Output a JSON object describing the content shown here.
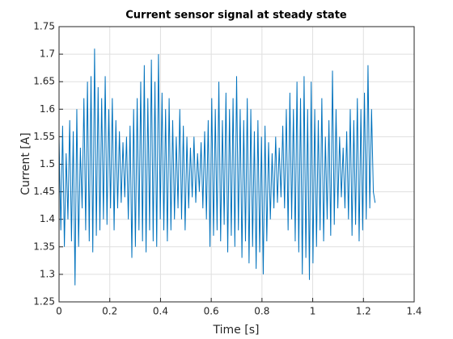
{
  "chart_data": {
    "type": "line",
    "title": "Current sensor signal at steady state",
    "xlabel": "Time [s]",
    "ylabel": "Current [A]",
    "xlim": [
      0,
      1.4
    ],
    "xticks": [
      0,
      0.2,
      0.4,
      0.6,
      0.8,
      1,
      1.2,
      1.4
    ],
    "ylim": [
      1.25,
      1.75
    ],
    "yticks": [
      1.25,
      1.3,
      1.35,
      1.4,
      1.45,
      1.5,
      1.55,
      1.6,
      1.65,
      1.7,
      1.75
    ],
    "grid": true,
    "color": "#0072bd",
    "x": [
      0,
      0.007,
      0.014,
      0.021,
      0.028,
      0.035,
      0.042,
      0.049,
      0.056,
      0.063,
      0.07,
      0.077,
      0.084,
      0.091,
      0.098,
      0.105,
      0.112,
      0.119,
      0.126,
      0.133,
      0.14,
      0.147,
      0.154,
      0.161,
      0.168,
      0.175,
      0.182,
      0.189,
      0.196,
      0.203,
      0.21,
      0.217,
      0.224,
      0.231,
      0.238,
      0.245,
      0.252,
      0.259,
      0.266,
      0.273,
      0.28,
      0.287,
      0.294,
      0.301,
      0.308,
      0.315,
      0.322,
      0.329,
      0.336,
      0.343,
      0.35,
      0.357,
      0.364,
      0.371,
      0.378,
      0.385,
      0.392,
      0.399,
      0.406,
      0.413,
      0.42,
      0.427,
      0.434,
      0.441,
      0.448,
      0.455,
      0.462,
      0.469,
      0.476,
      0.483,
      0.49,
      0.497,
      0.504,
      0.511,
      0.518,
      0.525,
      0.532,
      0.539,
      0.546,
      0.553,
      0.56,
      0.567,
      0.574,
      0.581,
      0.588,
      0.595,
      0.602,
      0.609,
      0.616,
      0.623,
      0.63,
      0.637,
      0.644,
      0.651,
      0.658,
      0.665,
      0.672,
      0.679,
      0.686,
      0.693,
      0.7,
      0.707,
      0.714,
      0.721,
      0.728,
      0.735,
      0.742,
      0.749,
      0.756,
      0.763,
      0.77,
      0.777,
      0.784,
      0.791,
      0.798,
      0.805,
      0.812,
      0.819,
      0.826,
      0.833,
      0.84,
      0.847,
      0.854,
      0.861,
      0.868,
      0.875,
      0.882,
      0.889,
      0.896,
      0.903,
      0.91,
      0.917,
      0.924,
      0.931,
      0.938,
      0.945,
      0.952,
      0.959,
      0.966,
      0.973,
      0.98,
      0.987,
      0.994,
      1.001,
      1.008,
      1.015,
      1.022,
      1.029,
      1.036,
      1.043,
      1.05,
      1.057,
      1.064,
      1.071,
      1.078,
      1.085,
      1.092,
      1.099,
      1.106,
      1.113,
      1.12,
      1.127,
      1.134,
      1.141,
      1.148,
      1.155,
      1.162,
      1.169,
      1.176,
      1.183,
      1.19,
      1.197,
      1.204,
      1.211,
      1.218,
      1.225,
      1.232,
      1.239,
      1.246
    ],
    "values": [
      1.55,
      1.38,
      1.57,
      1.35,
      1.52,
      1.4,
      1.58,
      1.36,
      1.56,
      1.28,
      1.6,
      1.35,
      1.53,
      1.42,
      1.62,
      1.38,
      1.65,
      1.36,
      1.66,
      1.34,
      1.71,
      1.37,
      1.64,
      1.38,
      1.62,
      1.4,
      1.66,
      1.39,
      1.6,
      1.42,
      1.62,
      1.38,
      1.58,
      1.42,
      1.56,
      1.43,
      1.54,
      1.44,
      1.55,
      1.4,
      1.57,
      1.33,
      1.6,
      1.35,
      1.62,
      1.38,
      1.65,
      1.36,
      1.68,
      1.34,
      1.62,
      1.38,
      1.69,
      1.36,
      1.65,
      1.35,
      1.7,
      1.4,
      1.63,
      1.38,
      1.6,
      1.36,
      1.62,
      1.38,
      1.58,
      1.4,
      1.55,
      1.42,
      1.6,
      1.4,
      1.57,
      1.38,
      1.55,
      1.42,
      1.53,
      1.44,
      1.55,
      1.43,
      1.52,
      1.45,
      1.54,
      1.42,
      1.56,
      1.4,
      1.58,
      1.35,
      1.62,
      1.37,
      1.6,
      1.38,
      1.65,
      1.36,
      1.58,
      1.39,
      1.63,
      1.34,
      1.6,
      1.37,
      1.62,
      1.35,
      1.66,
      1.38,
      1.6,
      1.33,
      1.58,
      1.36,
      1.62,
      1.32,
      1.6,
      1.35,
      1.56,
      1.31,
      1.58,
      1.34,
      1.55,
      1.3,
      1.57,
      1.36,
      1.54,
      1.4,
      1.52,
      1.42,
      1.55,
      1.43,
      1.53,
      1.44,
      1.57,
      1.42,
      1.6,
      1.38,
      1.63,
      1.4,
      1.6,
      1.36,
      1.65,
      1.34,
      1.62,
      1.3,
      1.66,
      1.33,
      1.6,
      1.29,
      1.65,
      1.32,
      1.6,
      1.35,
      1.58,
      1.38,
      1.62,
      1.36,
      1.55,
      1.4,
      1.58,
      1.37,
      1.67,
      1.39,
      1.6,
      1.42,
      1.55,
      1.44,
      1.53,
      1.42,
      1.56,
      1.4,
      1.6,
      1.37,
      1.58,
      1.39,
      1.62,
      1.36,
      1.6,
      1.38,
      1.63,
      1.4,
      1.68,
      1.42,
      1.6,
      1.45,
      1.43
    ]
  }
}
